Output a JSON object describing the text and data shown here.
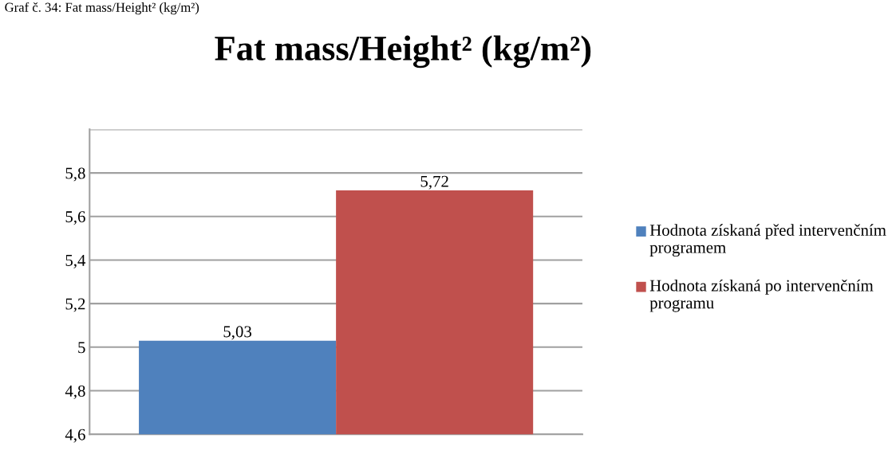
{
  "chart_data": {
    "type": "bar",
    "title": "Fat mass/Height² (kg/m²)",
    "annotations": [
      "Graf č. 34: Fat mass/Height² (kg/m²)"
    ],
    "categories": [
      null
    ],
    "series": [
      {
        "name": "Hodnota získaná před intervenčním programem",
        "color": "#4f81bd",
        "values": [
          5.03
        ],
        "value_labels": [
          "5,03"
        ]
      },
      {
        "name": "Hodnota získaná po intervenčním programu",
        "color": "#c0504d",
        "values": [
          5.72
        ],
        "value_labels": [
          "5,72"
        ]
      }
    ],
    "ylim": [
      4.6,
      6.0
    ],
    "yticks": [
      {
        "value": 4.6,
        "label": "4,6"
      },
      {
        "value": 4.8,
        "label": "4,8"
      },
      5,
      {
        "value": 5.2,
        "label": "5,2"
      },
      {
        "value": 5.4,
        "label": "5,4"
      },
      {
        "value": 5.6,
        "label": "5,6"
      },
      {
        "value": 5.8,
        "label": "5,8"
      },
      {
        "value": 6.0,
        "label": null
      }
    ],
    "grid": "y",
    "legend": "right"
  }
}
